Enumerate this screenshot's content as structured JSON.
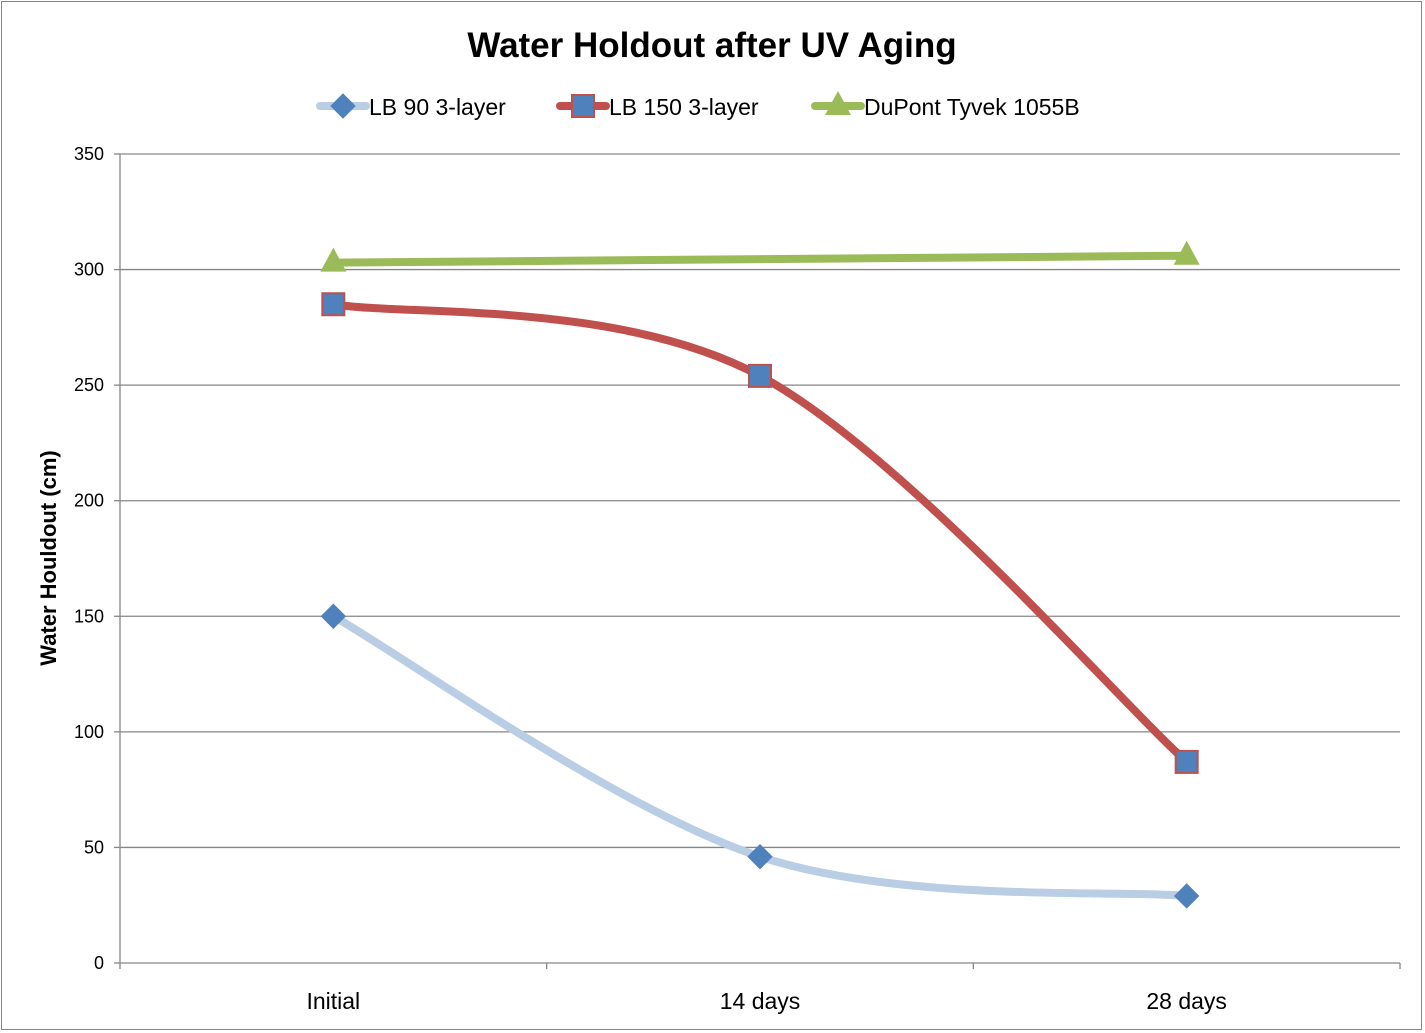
{
  "chart_data": {
    "type": "line",
    "title": "Water Holdout after UV Aging",
    "xlabel": "",
    "ylabel": "Water Houldout (cm)",
    "categories": [
      "Initial",
      "14 days",
      "28 days"
    ],
    "ylim": [
      0,
      350
    ],
    "yticks": [
      0,
      50,
      100,
      150,
      200,
      250,
      300,
      350
    ],
    "grid": true,
    "legend": "top",
    "smooth": true,
    "series": [
      {
        "name": "LB 90 3-layer",
        "values": [
          150,
          46,
          29
        ],
        "line_color": "#B9CDE5",
        "marker": "diamond",
        "marker_color": "#4F81BD"
      },
      {
        "name": "LB 150 3-layer",
        "values": [
          285,
          254,
          87
        ],
        "line_color": "#C0504D",
        "marker": "square",
        "marker_color": "#4F81BD"
      },
      {
        "name": "DuPont Tyvek 1055B",
        "values": [
          303,
          null,
          306
        ],
        "line_color": "#9BBB59",
        "marker": "triangle",
        "marker_color": "#9BBB59"
      }
    ]
  }
}
